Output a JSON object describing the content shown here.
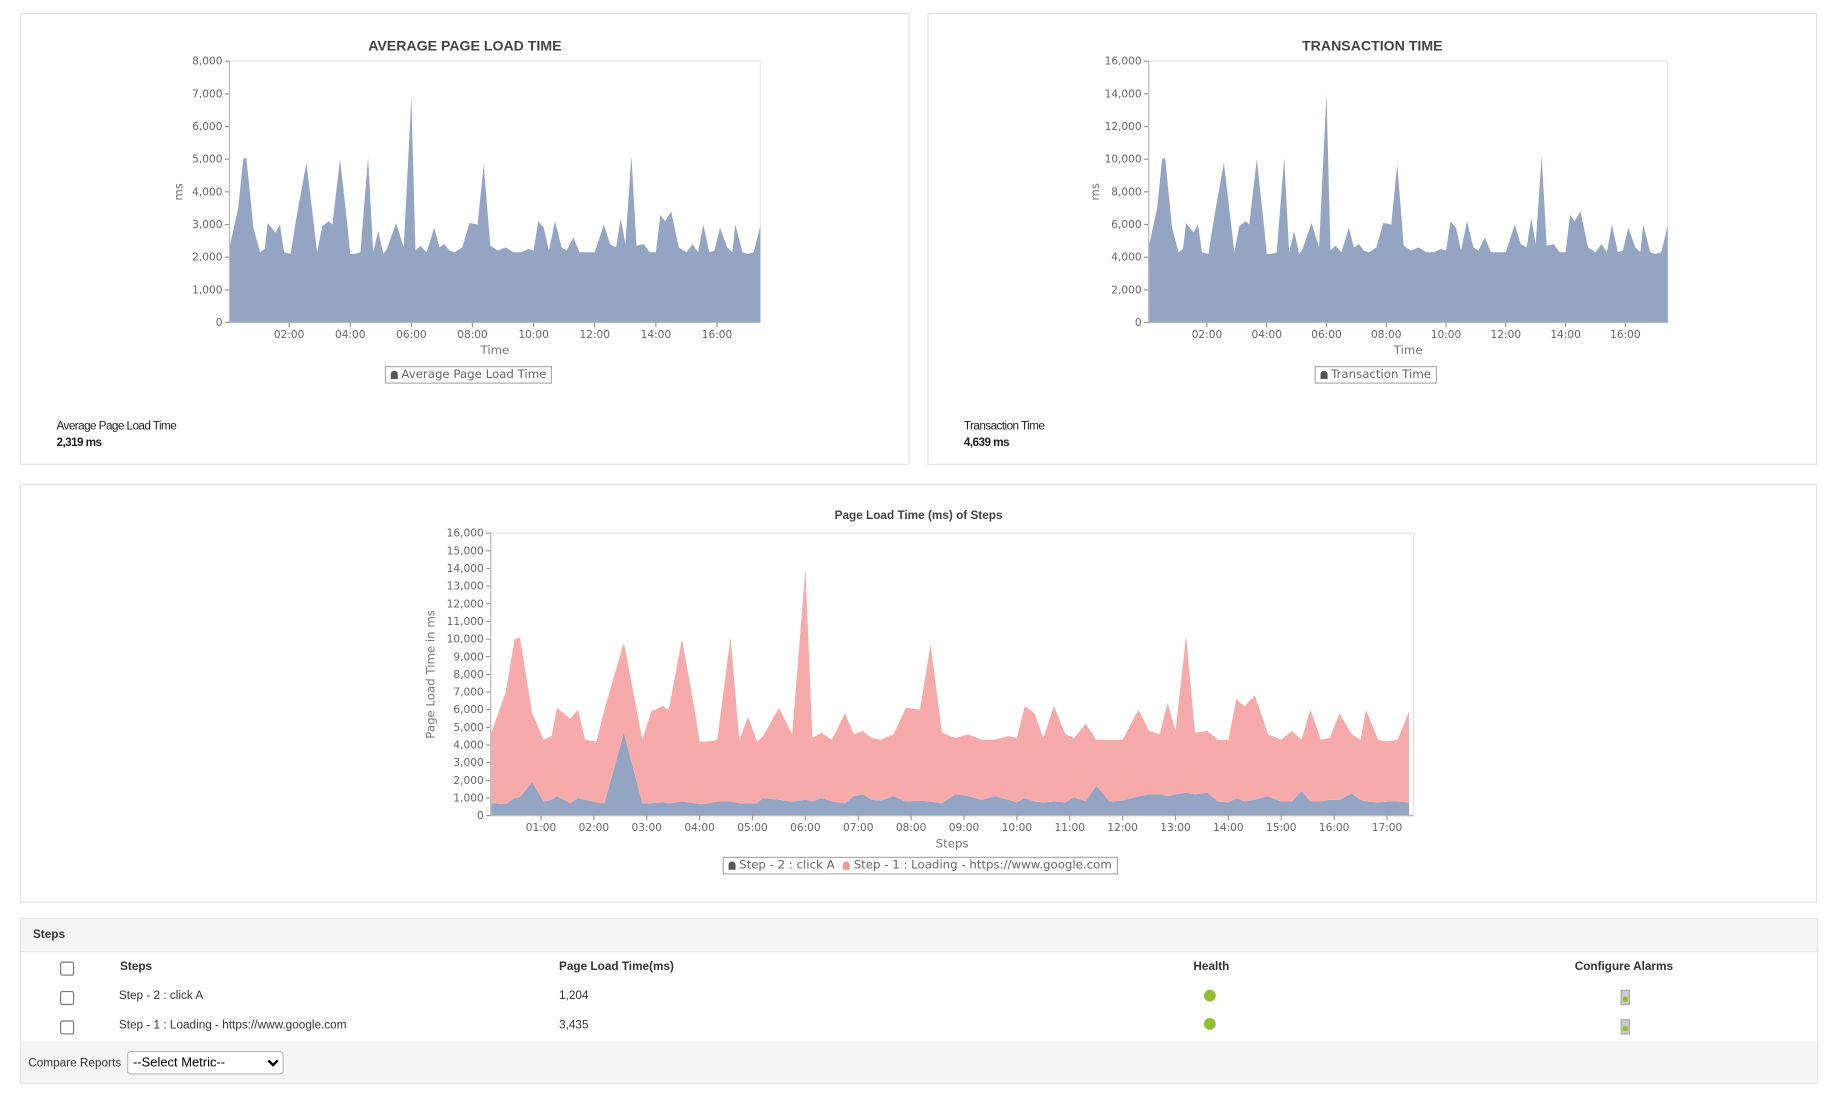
{
  "colors": {
    "step2": "#94a5c3",
    "step1": "#f7aaaa",
    "area": "#94a5c3",
    "health_ok": "#8fbe2f"
  },
  "times": [
    "00:03",
    "00:20",
    "00:30",
    "00:36",
    "00:50",
    "01:03",
    "01:12",
    "01:18",
    "01:33",
    "01:42",
    "01:50",
    "02:03",
    "02:12",
    "02:34",
    "02:55",
    "03:05",
    "03:18",
    "03:25",
    "03:40",
    "03:55",
    "04:00",
    "04:10",
    "04:20",
    "04:35",
    "04:45",
    "04:55",
    "05:05",
    "05:12",
    "05:30",
    "05:45",
    "06:00",
    "06:08",
    "06:18",
    "06:30",
    "06:45",
    "06:55",
    "07:05",
    "07:15",
    "07:25",
    "07:40",
    "07:54",
    "08:10",
    "08:22",
    "08:35",
    "08:50",
    "09:05",
    "09:20",
    "09:35",
    "09:50",
    "10:00",
    "10:09",
    "10:20",
    "10:30",
    "10:42",
    "10:55",
    "11:05",
    "11:18",
    "11:30",
    "11:45",
    "12:00",
    "12:18",
    "12:30",
    "12:42",
    "12:51",
    "13:00",
    "13:12",
    "13:22",
    "13:36",
    "13:48",
    "14:00",
    "14:09",
    "14:18",
    "14:30",
    "14:45",
    "15:00",
    "15:12",
    "15:23",
    "15:33",
    "15:45",
    "15:55",
    "16:06",
    "16:20",
    "16:30",
    "16:36",
    "16:50",
    "17:00",
    "17:12",
    "17:25"
  ],
  "chart_data": [
    {
      "id": "avg",
      "type": "area",
      "title": "AVERAGE PAGE LOAD TIME",
      "xlabel": "Time",
      "ylabel": "ms",
      "ylim": [
        0,
        8000
      ],
      "yticks": [
        "0",
        "1,000",
        "2,000",
        "3,000",
        "4,000",
        "5,000",
        "6,000",
        "7,000",
        "8,000"
      ],
      "ytick_values": [
        0,
        1000,
        2000,
        3000,
        4000,
        5000,
        6000,
        7000,
        8000
      ],
      "xticks": [
        "02:00",
        "04:00",
        "06:00",
        "08:00",
        "10:00",
        "12:00",
        "14:00",
        "16:00"
      ],
      "xlim": [
        "00:03",
        "17:25"
      ],
      "legend": "top-center-below-axis",
      "series": [
        {
          "name": "Average Page Load Time",
          "values": [
            2300,
            3500,
            5000,
            5050,
            2900,
            2150,
            2250,
            3050,
            2750,
            3000,
            2150,
            2100,
            3000,
            4900,
            2150,
            2950,
            3100,
            3000,
            5000,
            2900,
            2100,
            2100,
            2150,
            5050,
            2150,
            2800,
            2100,
            2250,
            3050,
            2300,
            6900,
            2200,
            2350,
            2150,
            2900,
            2300,
            2400,
            2200,
            2150,
            2300,
            3050,
            3000,
            4850,
            2350,
            2200,
            2300,
            2150,
            2150,
            2250,
            2200,
            3100,
            2900,
            2200,
            3100,
            2300,
            2200,
            2600,
            2150,
            2150,
            2150,
            3000,
            2400,
            2300,
            3200,
            2400,
            5100,
            2350,
            2400,
            2150,
            2150,
            3300,
            3100,
            3400,
            2300,
            2150,
            2400,
            2150,
            3000,
            2150,
            2200,
            2900,
            2300,
            2150,
            3000,
            2150,
            2100,
            2150,
            2950
          ]
        }
      ]
    },
    {
      "id": "trans",
      "type": "area",
      "title": "TRANSACTION TIME",
      "xlabel": "Time",
      "ylabel": "ms",
      "ylim": [
        0,
        16000
      ],
      "yticks": [
        "0",
        "2,000",
        "4,000",
        "6,000",
        "8,000",
        "10,000",
        "12,000",
        "14,000",
        "16,000"
      ],
      "ytick_values": [
        0,
        2000,
        4000,
        6000,
        8000,
        10000,
        12000,
        14000,
        16000
      ],
      "xticks": [
        "02:00",
        "04:00",
        "06:00",
        "08:00",
        "10:00",
        "12:00",
        "14:00",
        "16:00"
      ],
      "xlim": [
        "00:03",
        "17:25"
      ],
      "series": [
        {
          "name": "Transaction Time",
          "values": [
            4600,
            7000,
            10000,
            10100,
            5800,
            4300,
            4500,
            6100,
            5500,
            6000,
            4300,
            4200,
            6000,
            9800,
            4300,
            5900,
            6200,
            6000,
            10000,
            5800,
            4200,
            4200,
            4300,
            10100,
            4300,
            5600,
            4200,
            4500,
            6100,
            4600,
            14000,
            4400,
            4700,
            4300,
            5800,
            4600,
            4800,
            4400,
            4300,
            4600,
            6100,
            6000,
            9700,
            4700,
            4400,
            4600,
            4300,
            4300,
            4500,
            4400,
            6200,
            5800,
            4400,
            6200,
            4600,
            4400,
            5200,
            4300,
            4300,
            4300,
            6000,
            4800,
            4600,
            6400,
            4800,
            10200,
            4700,
            4800,
            4300,
            4300,
            6600,
            6200,
            6800,
            4600,
            4300,
            4800,
            4300,
            6000,
            4300,
            4400,
            5800,
            4600,
            4300,
            6000,
            4300,
            4200,
            4300,
            5900
          ]
        }
      ]
    },
    {
      "id": "steps",
      "type": "area",
      "stacked": true,
      "title": "Page Load Time (ms) of Steps",
      "xlabel": "Steps",
      "ylabel": "Page Load Time in ms",
      "ylim": [
        0,
        16000
      ],
      "yticks": [
        "0",
        "1,000",
        "2,000",
        "3,000",
        "4,000",
        "5,000",
        "6,000",
        "7,000",
        "8,000",
        "9,000",
        "10,000",
        "11,000",
        "12,000",
        "13,000",
        "14,000",
        "15,000",
        "16,000"
      ],
      "ytick_values": [
        0,
        1000,
        2000,
        3000,
        4000,
        5000,
        6000,
        7000,
        8000,
        9000,
        10000,
        11000,
        12000,
        13000,
        14000,
        15000,
        16000
      ],
      "xticks": [
        "01:00",
        "02:00",
        "03:00",
        "04:00",
        "05:00",
        "06:00",
        "07:00",
        "08:00",
        "09:00",
        "10:00",
        "11:00",
        "12:00",
        "13:00",
        "14:00",
        "15:00",
        "16:00",
        "17:00"
      ],
      "xlim": [
        "00:03",
        "17:30"
      ],
      "series": [
        {
          "name": "Step - 2 : click A",
          "values": [
            700,
            650,
            1000,
            1050,
            1900,
            800,
            900,
            1100,
            700,
            1000,
            900,
            750,
            700,
            4700,
            700,
            700,
            750,
            700,
            800,
            700,
            650,
            700,
            800,
            800,
            700,
            700,
            700,
            1000,
            900,
            800,
            900,
            800,
            1000,
            800,
            700,
            1100,
            1200,
            900,
            850,
            1100,
            800,
            850,
            800,
            700,
            1200,
            1100,
            900,
            1100,
            900,
            750,
            1000,
            800,
            750,
            800,
            750,
            1050,
            800,
            1700,
            800,
            850,
            1100,
            1200,
            1200,
            1100,
            1200,
            1300,
            1200,
            1300,
            800,
            750,
            1000,
            800,
            900,
            1100,
            800,
            800,
            1400,
            800,
            800,
            900,
            900,
            1250,
            900,
            800,
            750,
            800,
            800,
            750
          ]
        },
        {
          "name": "Step - 1 : Loading - https://www.google.com",
          "values": [
            3900,
            6350,
            9000,
            9050,
            3900,
            3500,
            3600,
            5000,
            4800,
            5000,
            3400,
            3450,
            5300,
            5100,
            3600,
            5200,
            5450,
            5300,
            9200,
            5100,
            3550,
            3500,
            3500,
            9300,
            3600,
            4900,
            3500,
            3500,
            5200,
            3800,
            13100,
            3600,
            3700,
            3500,
            5100,
            3500,
            3600,
            3500,
            3450,
            3500,
            5300,
            5150,
            8900,
            4000,
            3200,
            3500,
            3400,
            3200,
            3600,
            3650,
            5200,
            5000,
            3650,
            5400,
            3850,
            3350,
            4400,
            2600,
            3500,
            3450,
            4900,
            3600,
            3400,
            5300,
            3600,
            8900,
            3500,
            3500,
            3500,
            3550,
            5600,
            5400,
            5900,
            3500,
            3500,
            4000,
            2900,
            5200,
            3500,
            3500,
            4900,
            3350,
            3400,
            5200,
            3550,
            3400,
            3500,
            5150
          ]
        }
      ]
    }
  ],
  "summary": {
    "avg_label": "Average Page Load Time",
    "avg_value": "2,319 ms",
    "trans_label": "Transaction Time",
    "trans_value": "4,639 ms"
  },
  "steps_table": {
    "title": "Steps",
    "columns": [
      "Steps",
      "Page Load Time(ms)",
      "Health",
      "Configure Alarms"
    ],
    "rows": [
      {
        "step": "Step - 2 : click A",
        "load_time": "1,204",
        "health": "green",
        "alarm_icon": "configure-alarm-icon"
      },
      {
        "step": "Step - 1 : Loading - https://www.google.com",
        "load_time": "3,435",
        "health": "green",
        "alarm_icon": "configure-alarm-icon"
      }
    ],
    "compare_label": "Compare Reports",
    "compare_select": "--Select Metric--"
  }
}
